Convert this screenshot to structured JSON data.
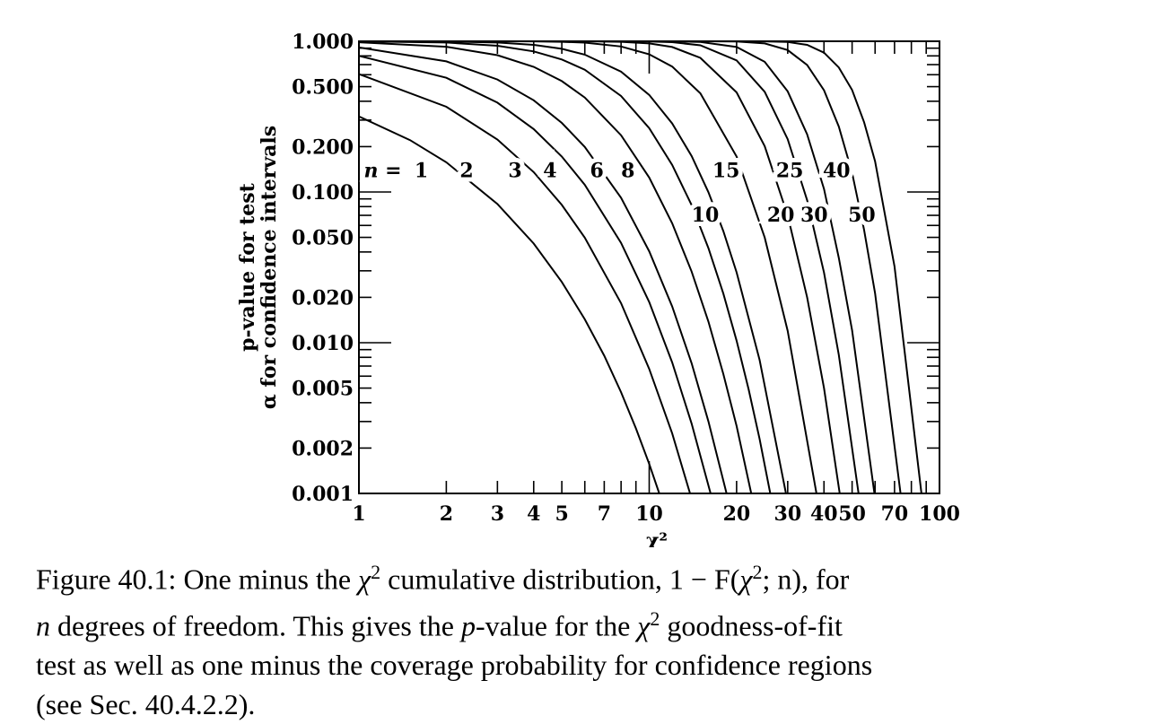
{
  "chart_data": {
    "type": "line",
    "x_scale": "log",
    "y_scale": "log",
    "xlim": [
      1,
      100
    ],
    "ylim": [
      0.001,
      1.0
    ],
    "xlabel": "χ²",
    "ylabel_lines": [
      "p-value for test",
      "α for confidence intervals"
    ],
    "x_ticks": [
      1,
      2,
      3,
      4,
      5,
      7,
      10,
      20,
      30,
      40,
      50,
      70,
      100
    ],
    "x_tick_labels": [
      "1",
      "2",
      "3",
      "4",
      "5",
      "7",
      "10",
      "20",
      "30",
      "40",
      "50",
      "70",
      "100"
    ],
    "y_ticks": [
      0.001,
      0.002,
      0.005,
      0.01,
      0.02,
      0.05,
      0.1,
      0.2,
      0.5,
      1.0
    ],
    "y_tick_labels": [
      "0.001",
      "0.002",
      "0.005",
      "0.010",
      "0.020",
      "0.050",
      "0.100",
      "0.200",
      "0.500",
      "1.000"
    ],
    "curve_label_prefix": "n =",
    "curve_labels": [
      "1",
      "2",
      "3",
      "4",
      "6",
      "8",
      "10",
      "15",
      "20",
      "25",
      "30",
      "40",
      "50"
    ],
    "series": [
      {
        "dof": 1,
        "x": [
          1,
          1.5,
          2,
          3,
          4,
          5,
          6,
          7,
          8,
          9,
          10,
          10.83
        ],
        "y": [
          0.3173,
          0.2207,
          0.1573,
          0.0833,
          0.0455,
          0.0253,
          0.0143,
          0.0082,
          0.0047,
          0.0027,
          0.00157,
          0.001
        ]
      },
      {
        "dof": 2,
        "x": [
          1,
          2,
          3,
          4,
          5,
          6,
          8,
          10,
          12,
          13.82
        ],
        "y": [
          0.6065,
          0.3679,
          0.2231,
          0.1353,
          0.0821,
          0.0498,
          0.0183,
          0.0067,
          0.0025,
          0.001
        ]
      },
      {
        "dof": 3,
        "x": [
          1,
          2,
          3,
          4,
          5,
          6,
          8,
          10,
          12,
          14,
          16.27
        ],
        "y": [
          0.8013,
          0.5724,
          0.3916,
          0.2615,
          0.1718,
          0.1116,
          0.046,
          0.0186,
          0.0074,
          0.0029,
          0.001
        ]
      },
      {
        "dof": 4,
        "x": [
          1,
          2,
          3,
          4,
          5,
          6,
          8,
          10,
          12,
          14,
          16,
          18.47
        ],
        "y": [
          0.9098,
          0.7358,
          0.5578,
          0.406,
          0.2873,
          0.1991,
          0.0916,
          0.0404,
          0.0174,
          0.0073,
          0.003,
          0.001
        ]
      },
      {
        "dof": 6,
        "x": [
          1,
          2,
          3,
          4,
          5,
          6,
          8,
          10,
          12,
          14,
          16,
          18,
          20,
          22.46
        ],
        "y": [
          0.9856,
          0.9197,
          0.8088,
          0.6767,
          0.5438,
          0.4232,
          0.2381,
          0.1247,
          0.062,
          0.0296,
          0.0138,
          0.0062,
          0.0028,
          0.001
        ]
      },
      {
        "dof": 8,
        "x": [
          1,
          2,
          3,
          4,
          5,
          6,
          8,
          10,
          12,
          14,
          16,
          18,
          20,
          22,
          24,
          26.12
        ],
        "y": [
          0.9982,
          0.981,
          0.9344,
          0.8571,
          0.7576,
          0.6472,
          0.4335,
          0.265,
          0.1512,
          0.0818,
          0.0424,
          0.0212,
          0.0103,
          0.0049,
          0.0023,
          0.001
        ]
      },
      {
        "dof": 10,
        "x": [
          2,
          3,
          4,
          5,
          6,
          8,
          10,
          12,
          14,
          16,
          18,
          20,
          24,
          29.59
        ],
        "y": [
          0.9963,
          0.9814,
          0.9473,
          0.8912,
          0.8153,
          0.6288,
          0.4405,
          0.2851,
          0.173,
          0.0996,
          0.055,
          0.0293,
          0.0077,
          0.001
        ]
      },
      {
        "dof": 15,
        "x": [
          3,
          4,
          5,
          6,
          8,
          10,
          12,
          15,
          20,
          25,
          30,
          37.7
        ],
        "y": [
          0.9996,
          0.9982,
          0.9921,
          0.9797,
          0.9238,
          0.8197,
          0.6796,
          0.4514,
          0.1719,
          0.0499,
          0.012,
          0.001
        ]
      },
      {
        "dof": 20,
        "x": [
          5,
          6,
          8,
          10,
          12,
          15,
          20,
          25,
          30,
          35,
          40,
          45.31
        ],
        "y": [
          0.9997,
          0.9994,
          0.9919,
          0.9682,
          0.9161,
          0.7764,
          0.4579,
          0.2014,
          0.0699,
          0.02,
          0.005,
          0.001
        ]
      },
      {
        "dof": 25,
        "x": [
          8,
          10,
          12,
          15,
          20,
          25,
          30,
          35,
          40,
          45,
          52.62
        ],
        "y": [
          0.9998,
          0.9973,
          0.986,
          0.94,
          0.7468,
          0.4624,
          0.2243,
          0.0882,
          0.0292,
          0.0083,
          0.001
        ]
      },
      {
        "dof": 30,
        "x": [
          10,
          12,
          15,
          20,
          25,
          30,
          35,
          40,
          45,
          50,
          59.7
        ],
        "y": [
          0.9999,
          0.9982,
          0.9897,
          0.9156,
          0.7311,
          0.4657,
          0.2415,
          0.1047,
          0.0365,
          0.0121,
          0.001
        ]
      },
      {
        "dof": 40,
        "x": [
          15,
          20,
          25,
          30,
          35,
          40,
          45,
          50,
          55,
          60,
          73.4
        ],
        "y": [
          0.9999,
          0.9976,
          0.9683,
          0.874,
          0.695,
          0.4734,
          0.2716,
          0.134,
          0.0559,
          0.0213,
          0.001
        ]
      },
      {
        "dof": 50,
        "x": [
          20,
          25,
          30,
          35,
          40,
          45,
          50,
          55,
          60,
          70,
          86.66
        ],
        "y": [
          0.9999,
          0.9993,
          0.989,
          0.947,
          0.84,
          0.67,
          0.475,
          0.29,
          0.16,
          0.032,
          0.001
        ]
      }
    ]
  },
  "caption": {
    "prefix": "Figure 40.1: One minus the ",
    "chi": "χ",
    "sup": "2",
    "part2": " cumulative distribution, 1 − F(",
    "chi_b": "χ",
    "sup_b": "2",
    "part3": "; n), for",
    "line2_n": "n",
    "line2_rest": " degrees of freedom.  This gives the ",
    "line2_p": "p",
    "line2_rest2": "-value for the ",
    "line2_chi": "χ",
    "line2_sup": "2",
    "line2_end": " goodness-of-fit",
    "line3": "test as well as one minus the coverage probability for confidence regions",
    "line4": "(see Sec. 40.4.2.2)."
  }
}
